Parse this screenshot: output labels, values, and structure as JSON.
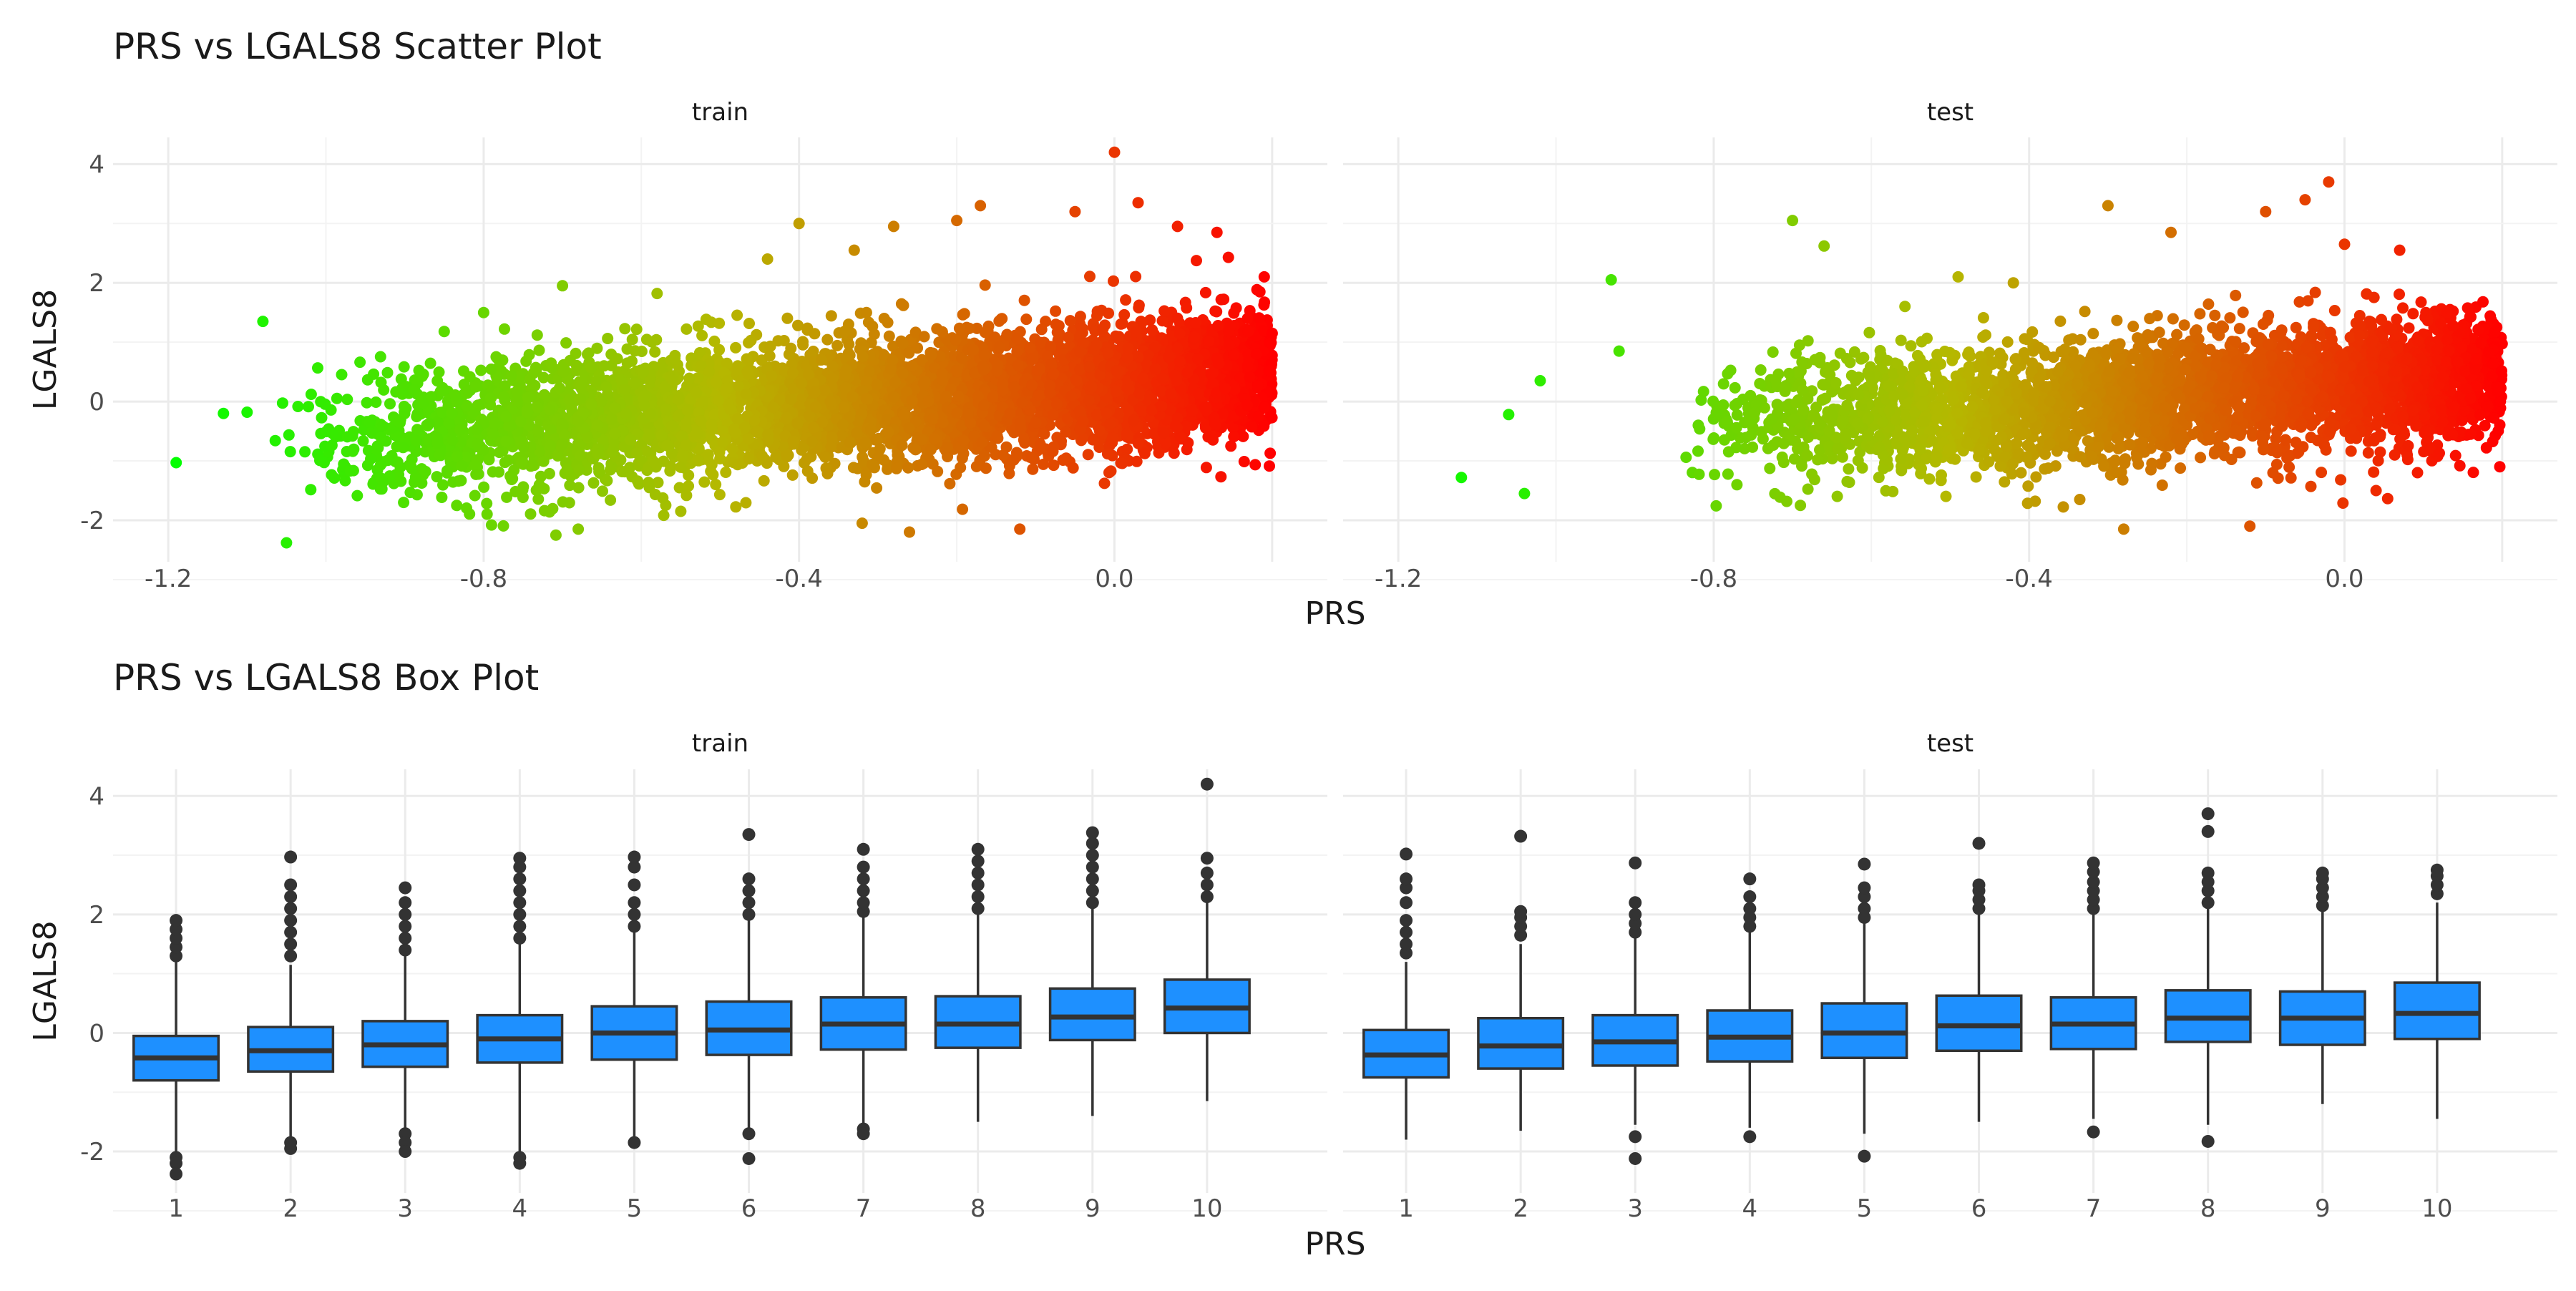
{
  "colors": {
    "grid_major": "#ebebeb",
    "grid_minor": "#f3f3f3",
    "tick_text": "#4d4d4d",
    "box_fill": "#1E90FF",
    "box_line": "#333333",
    "gradient_low": "#00ff00",
    "gradient_mid": "#b5b800",
    "gradient_high": "#ff0000"
  },
  "chart_data": [
    {
      "type": "scatter",
      "title": "PRS vs LGALS8 Scatter Plot",
      "xlabel": "PRS",
      "ylabel": "LGALS8",
      "color_mapping": "x (green → orange → red)",
      "grid": true,
      "facets": [
        "train",
        "test"
      ],
      "xlim": [
        -1.27,
        0.27
      ],
      "ylim": [
        -2.7,
        4.45
      ],
      "x_ticks": [
        -1.2,
        -0.8,
        -0.4,
        0.0
      ],
      "x_tick_labels": [
        "-1.2",
        "-0.8",
        "-0.4",
        "0.0"
      ],
      "y_ticks": [
        -2,
        0,
        2,
        4
      ],
      "y_tick_labels": [
        "-2",
        "0",
        "2",
        "4"
      ],
      "panels": [
        {
          "facet": "train",
          "n_points_estimate": 20000,
          "density": {
            "x_range": [
              -1.2,
              0.2
            ],
            "trend": "LGALS8 rises with PRS; median ≈ -0.45 at PRS -0.85, ≈ 0.4 at PRS 0.1",
            "y_spread_sd": 0.65
          },
          "outliers": [
            {
              "x": -1.19,
              "y": -1.03
            },
            {
              "x": -1.08,
              "y": 1.35
            },
            {
              "x": -1.05,
              "y": -2.38
            },
            {
              "x": -1.13,
              "y": -0.2
            },
            {
              "x": -1.1,
              "y": -0.18
            },
            {
              "x": -0.85,
              "y": 1.18
            },
            {
              "x": -0.8,
              "y": 1.5
            },
            {
              "x": -0.79,
              "y": -2.08
            },
            {
              "x": -0.7,
              "y": 1.95
            },
            {
              "x": -0.68,
              "y": -2.15
            },
            {
              "x": -0.58,
              "y": 1.82
            },
            {
              "x": -0.55,
              "y": -1.85
            },
            {
              "x": -0.44,
              "y": 2.4
            },
            {
              "x": -0.4,
              "y": 3.0
            },
            {
              "x": -0.33,
              "y": 2.55
            },
            {
              "x": -0.32,
              "y": -2.05
            },
            {
              "x": -0.28,
              "y": 2.95
            },
            {
              "x": -0.26,
              "y": -2.2
            },
            {
              "x": -0.2,
              "y": 3.05
            },
            {
              "x": -0.17,
              "y": 3.3
            },
            {
              "x": -0.12,
              "y": -2.15
            },
            {
              "x": -0.05,
              "y": 3.2
            },
            {
              "x": 0.0,
              "y": 4.2
            },
            {
              "x": 0.03,
              "y": 3.35
            },
            {
              "x": 0.08,
              "y": 2.95
            },
            {
              "x": 0.13,
              "y": 2.85
            },
            {
              "x": 0.19,
              "y": 2.1
            },
            {
              "x": 0.2,
              "y": 1.15
            },
            {
              "x": 0.18,
              "y": 0.8
            },
            {
              "x": 0.19,
              "y": -0.1
            }
          ]
        },
        {
          "facet": "test",
          "n_points_estimate": 9000,
          "density": {
            "x_range": [
              -1.0,
              0.2
            ],
            "trend": "LGALS8 rises with PRS; median ≈ -0.4 at PRS -0.85, ≈ 0.35 at PRS 0.1",
            "y_spread_sd": 0.65
          },
          "outliers": [
            {
              "x": -1.12,
              "y": -1.28
            },
            {
              "x": -1.06,
              "y": -0.22
            },
            {
              "x": -1.04,
              "y": -1.55
            },
            {
              "x": -1.02,
              "y": 0.35
            },
            {
              "x": -0.93,
              "y": 2.05
            },
            {
              "x": -0.92,
              "y": 0.85
            },
            {
              "x": -0.7,
              "y": 3.05
            },
            {
              "x": -0.69,
              "y": -1.75
            },
            {
              "x": -0.66,
              "y": 2.62
            },
            {
              "x": -0.49,
              "y": 2.1
            },
            {
              "x": -0.42,
              "y": 2.0
            },
            {
              "x": -0.3,
              "y": 3.3
            },
            {
              "x": -0.28,
              "y": -2.15
            },
            {
              "x": -0.22,
              "y": 2.85
            },
            {
              "x": -0.12,
              "y": -2.1
            },
            {
              "x": -0.1,
              "y": 3.2
            },
            {
              "x": -0.05,
              "y": 3.4
            },
            {
              "x": -0.02,
              "y": 3.7
            },
            {
              "x": 0.0,
              "y": 2.65
            },
            {
              "x": 0.04,
              "y": -1.5
            },
            {
              "x": 0.07,
              "y": 2.55
            },
            {
              "x": 0.13,
              "y": 1.5
            },
            {
              "x": 0.16,
              "y": 0.05
            },
            {
              "x": 0.18,
              "y": -0.78
            },
            {
              "x": 0.16,
              "y": -0.55
            }
          ]
        }
      ]
    },
    {
      "type": "box",
      "title": "PRS vs LGALS8 Box Plot",
      "xlabel": "PRS",
      "ylabel": "LGALS8",
      "grid": true,
      "facets": [
        "train",
        "test"
      ],
      "categories": [
        "1",
        "2",
        "3",
        "4",
        "5",
        "6",
        "7",
        "8",
        "9",
        "10"
      ],
      "ylim": [
        -2.7,
        4.45
      ],
      "y_ticks": [
        -2,
        0,
        2,
        4
      ],
      "y_tick_labels": [
        "-2",
        "0",
        "2",
        "4"
      ],
      "panels": [
        {
          "facet": "train",
          "boxes": [
            {
              "category": "1",
              "q1": -0.8,
              "median": -0.42,
              "q3": -0.05,
              "whisker_low": -2.0,
              "whisker_high": 1.2,
              "outliers_high": [
                1.3,
                1.45,
                1.6,
                1.75,
                1.9
              ],
              "outliers_low": [
                -2.1,
                -2.2,
                -2.38
              ]
            },
            {
              "category": "2",
              "q1": -0.65,
              "median": -0.3,
              "q3": 0.1,
              "whisker_low": -1.75,
              "whisker_high": 1.15,
              "outliers_high": [
                1.3,
                1.5,
                1.7,
                1.9,
                2.1,
                2.3,
                2.5,
                2.97
              ],
              "outliers_low": [
                -1.85,
                -1.95
              ]
            },
            {
              "category": "3",
              "q1": -0.57,
              "median": -0.2,
              "q3": 0.2,
              "whisker_low": -1.6,
              "whisker_high": 1.3,
              "outliers_high": [
                1.4,
                1.6,
                1.8,
                2.0,
                2.2,
                2.45
              ],
              "outliers_low": [
                -1.7,
                -1.85,
                -2.0
              ]
            },
            {
              "category": "4",
              "q1": -0.5,
              "median": -0.1,
              "q3": 0.3,
              "whisker_low": -2.0,
              "whisker_high": 1.5,
              "outliers_high": [
                1.6,
                1.8,
                2.0,
                2.2,
                2.4,
                2.6,
                2.8,
                2.95
              ],
              "outliers_low": [
                -2.1,
                -2.2
              ]
            },
            {
              "category": "5",
              "q1": -0.45,
              "median": 0.0,
              "q3": 0.45,
              "whisker_low": -1.8,
              "whisker_high": 1.7,
              "outliers_high": [
                1.8,
                2.0,
                2.2,
                2.5,
                2.8,
                2.97
              ],
              "outliers_low": [
                -1.85
              ]
            },
            {
              "category": "6",
              "q1": -0.37,
              "median": 0.05,
              "q3": 0.53,
              "whisker_low": -1.65,
              "whisker_high": 1.9,
              "outliers_high": [
                2.0,
                2.2,
                2.4,
                2.6,
                3.35
              ],
              "outliers_low": [
                -1.7,
                -2.12
              ]
            },
            {
              "category": "7",
              "q1": -0.28,
              "median": 0.15,
              "q3": 0.6,
              "whisker_low": -1.6,
              "whisker_high": 1.95,
              "outliers_high": [
                2.05,
                2.2,
                2.4,
                2.6,
                2.8,
                3.1
              ],
              "outliers_low": [
                -1.62,
                -1.7
              ]
            },
            {
              "category": "8",
              "q1": -0.25,
              "median": 0.15,
              "q3": 0.62,
              "whisker_low": -1.5,
              "whisker_high": 2.0,
              "outliers_high": [
                2.1,
                2.3,
                2.5,
                2.7,
                2.9,
                3.1
              ],
              "outliers_low": []
            },
            {
              "category": "9",
              "q1": -0.12,
              "median": 0.27,
              "q3": 0.75,
              "whisker_low": -1.4,
              "whisker_high": 2.1,
              "outliers_high": [
                2.2,
                2.4,
                2.6,
                2.8,
                3.0,
                3.2,
                3.38
              ],
              "outliers_low": []
            },
            {
              "category": "10",
              "q1": 0.0,
              "median": 0.42,
              "q3": 0.9,
              "whisker_low": -1.15,
              "whisker_high": 2.2,
              "outliers_high": [
                2.3,
                2.5,
                2.7,
                2.95,
                4.2
              ],
              "outliers_low": []
            }
          ]
        },
        {
          "facet": "test",
          "boxes": [
            {
              "category": "1",
              "q1": -0.75,
              "median": -0.37,
              "q3": 0.05,
              "whisker_low": -1.8,
              "whisker_high": 1.2,
              "outliers_high": [
                1.35,
                1.5,
                1.7,
                1.9,
                2.2,
                2.45,
                2.6,
                3.02
              ],
              "outliers_low": []
            },
            {
              "category": "2",
              "q1": -0.6,
              "median": -0.22,
              "q3": 0.25,
              "whisker_low": -1.65,
              "whisker_high": 1.5,
              "outliers_high": [
                1.65,
                1.8,
                1.95,
                2.05,
                3.32
              ],
              "outliers_low": []
            },
            {
              "category": "3",
              "q1": -0.55,
              "median": -0.15,
              "q3": 0.3,
              "whisker_low": -1.55,
              "whisker_high": 1.6,
              "outliers_high": [
                1.7,
                1.85,
                2.0,
                2.2,
                2.87
              ],
              "outliers_low": [
                -1.75,
                -2.12
              ]
            },
            {
              "category": "4",
              "q1": -0.48,
              "median": -0.07,
              "q3": 0.38,
              "whisker_low": -1.6,
              "whisker_high": 1.7,
              "outliers_high": [
                1.8,
                1.95,
                2.1,
                2.3,
                2.6
              ],
              "outliers_low": [
                -1.75
              ]
            },
            {
              "category": "5",
              "q1": -0.42,
              "median": 0.0,
              "q3": 0.5,
              "whisker_low": -1.7,
              "whisker_high": 1.85,
              "outliers_high": [
                1.95,
                2.1,
                2.3,
                2.45,
                2.85
              ],
              "outliers_low": [
                -2.08
              ]
            },
            {
              "category": "6",
              "q1": -0.3,
              "median": 0.12,
              "q3": 0.63,
              "whisker_low": -1.5,
              "whisker_high": 2.0,
              "outliers_high": [
                2.1,
                2.25,
                2.4,
                2.5,
                3.2
              ],
              "outliers_low": []
            },
            {
              "category": "7",
              "q1": -0.27,
              "median": 0.15,
              "q3": 0.6,
              "whisker_low": -1.45,
              "whisker_high": 2.0,
              "outliers_high": [
                2.1,
                2.25,
                2.4,
                2.55,
                2.72,
                2.87
              ],
              "outliers_low": [
                -1.67
              ]
            },
            {
              "category": "8",
              "q1": -0.15,
              "median": 0.25,
              "q3": 0.72,
              "whisker_low": -1.55,
              "whisker_high": 2.1,
              "outliers_high": [
                2.2,
                2.4,
                2.55,
                2.7,
                3.4,
                3.7
              ],
              "outliers_low": [
                -1.83
              ]
            },
            {
              "category": "9",
              "q1": -0.2,
              "median": 0.25,
              "q3": 0.7,
              "whisker_low": -1.2,
              "whisker_high": 2.05,
              "outliers_high": [
                2.15,
                2.3,
                2.45,
                2.6,
                2.7
              ],
              "outliers_low": []
            },
            {
              "category": "10",
              "q1": -0.1,
              "median": 0.33,
              "q3": 0.85,
              "whisker_low": -1.45,
              "whisker_high": 2.2,
              "outliers_high": [
                2.35,
                2.5,
                2.65,
                2.75
              ],
              "outliers_low": []
            }
          ]
        }
      ]
    }
  ]
}
